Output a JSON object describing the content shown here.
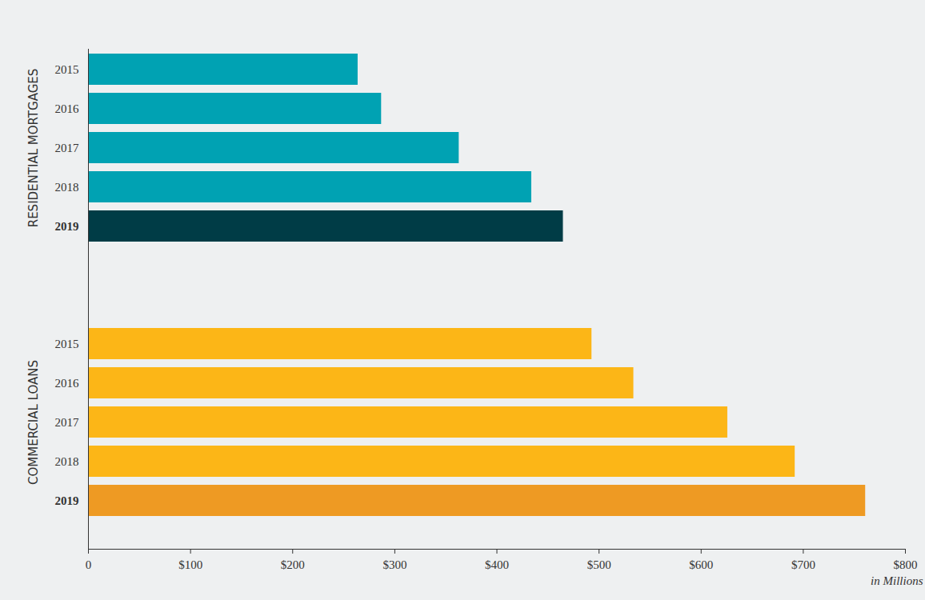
{
  "chart_data": {
    "type": "bar",
    "orientation": "horizontal",
    "categories": [
      "2015",
      "2016",
      "2017",
      "2018",
      "2019"
    ],
    "series": [
      {
        "name": "RESIDENTIAL MORTGAGES",
        "values": [
          264,
          287,
          363,
          434,
          465
        ],
        "colors": [
          "#00a2b3",
          "#00a2b3",
          "#00a2b3",
          "#00a2b3",
          "#003c46"
        ]
      },
      {
        "name": "COMMERCIAL LOANS",
        "values": [
          493,
          534,
          626,
          692,
          761
        ],
        "colors": [
          "#fcb617",
          "#fcb617",
          "#fcb617",
          "#fcb617",
          "#ee9a23"
        ]
      }
    ],
    "xlim": [
      0,
      800
    ],
    "xticks": [
      0,
      {
        "value": 100,
        "label": "$100"
      },
      {
        "value": 200,
        "label": "$200"
      },
      {
        "value": 300,
        "label": "$300"
      },
      {
        "value": 400,
        "label": "$400"
      },
      {
        "value": 500,
        "label": "$500"
      },
      {
        "value": 600,
        "label": "$600"
      },
      {
        "value": 700,
        "label": "$700"
      },
      {
        "value": 800,
        "label": "$800"
      }
    ],
    "xlabel": "in Millions",
    "grid": false
  }
}
